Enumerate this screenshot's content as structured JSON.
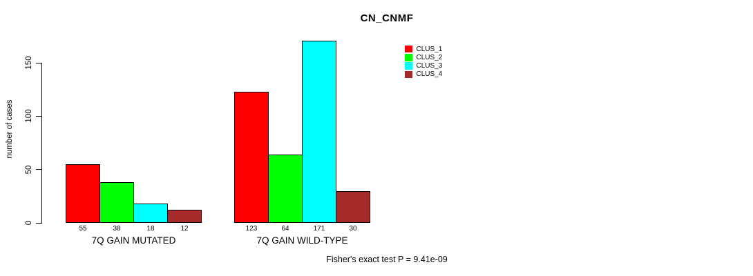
{
  "window": {
    "background": "#ffffff",
    "text_color": "#000000"
  },
  "chart_data": {
    "type": "bar",
    "title": "CN_CNMF",
    "xlabel": "",
    "ylabel": "number of cases",
    "ylim": [
      0,
      150
    ],
    "yticks": [
      0,
      50,
      100,
      150
    ],
    "grid": false,
    "legend_position": "top-right",
    "bar_border_color": "#000000",
    "bar_value_labels_shown": true,
    "categories": [
      "7Q GAIN MUTATED",
      "7Q GAIN WILD-TYPE"
    ],
    "series": [
      {
        "name": "CLUS_1",
        "color": "#ff0000",
        "values": [
          55,
          123
        ]
      },
      {
        "name": "CLUS_2",
        "color": "#00ff00",
        "values": [
          38,
          64
        ]
      },
      {
        "name": "CLUS_3",
        "color": "#00ffff",
        "values": [
          18,
          171
        ]
      },
      {
        "name": "CLUS_4",
        "color": "#a52a2a",
        "values": [
          12,
          30
        ]
      }
    ]
  },
  "footnote": "Fisher's exact test P = 9.41e-09"
}
